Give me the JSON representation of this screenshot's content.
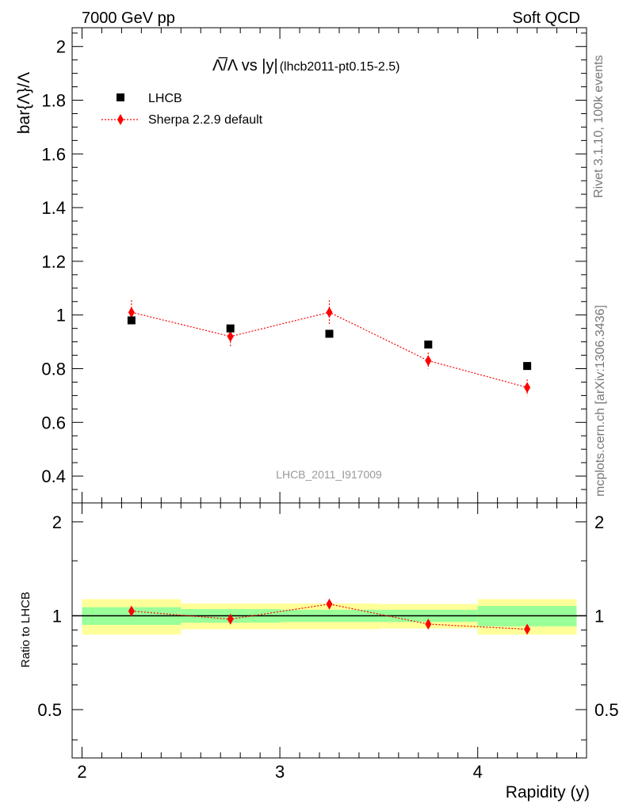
{
  "header": {
    "left": "7000 GeV pp",
    "right": "Soft QCD"
  },
  "side_labels": {
    "top": "Rivet 3.1.10,  100k events",
    "bottom": "mcplots.cern.ch [arXiv:1306.3436]"
  },
  "watermark": "LHCB_2011_I917009",
  "colors": {
    "data": "#000000",
    "mc": "#ff0000",
    "band_inner": "#99ff99",
    "band_outer": "#ffff99"
  },
  "chart_data": {
    "type": "scatter",
    "title": "Λ̅/Λ vs |y|",
    "title_main": "Λ̅/Λ vs |y|",
    "title_suffix": "(lhcb2011-pt0.15-2.5)",
    "xlabel": "Rapidity (y)",
    "ylabel": "bar{Λ}/Λ",
    "ratio_ylabel": "Ratio to LHCB",
    "xlim": [
      1.95,
      4.55
    ],
    "ylim": [
      0.3,
      2.07
    ],
    "ratio_ylim": [
      0.35,
      2.3
    ],
    "ratio_scale": "log",
    "x_ticks": [
      "2",
      "3",
      "4"
    ],
    "y_ticks": [
      "0.4",
      "0.6",
      "0.8",
      "1",
      "1.2",
      "1.4",
      "1.6",
      "1.8",
      "2"
    ],
    "ratio_ticks": [
      "0.5",
      "1",
      "2"
    ],
    "legend": {
      "position": "top-left",
      "entries": [
        "LHCB",
        "Sherpa 2.2.9 default"
      ]
    },
    "bin_edges": [
      2.0,
      2.5,
      3.0,
      3.5,
      4.0,
      4.5
    ],
    "x": [
      2.25,
      2.75,
      3.25,
      3.75,
      4.25
    ],
    "series": [
      {
        "name": "LHCB",
        "values": [
          0.98,
          0.95,
          0.93,
          0.89,
          0.81
        ]
      },
      {
        "name": "Sherpa 2.2.9 default",
        "values": [
          1.01,
          0.92,
          1.01,
          0.83,
          0.73
        ],
        "err": [
          0.045,
          0.04,
          0.045,
          0.03,
          0.03
        ]
      }
    ],
    "ratio": {
      "values": [
        1.035,
        0.975,
        1.09,
        0.94,
        0.905
      ],
      "err": [
        0.035,
        0.03,
        0.035,
        0.025,
        0.025
      ],
      "band_inner": [
        0.065,
        0.05,
        0.045,
        0.045,
        0.075
      ],
      "band_outer": [
        0.13,
        0.095,
        0.095,
        0.09,
        0.13
      ]
    }
  }
}
